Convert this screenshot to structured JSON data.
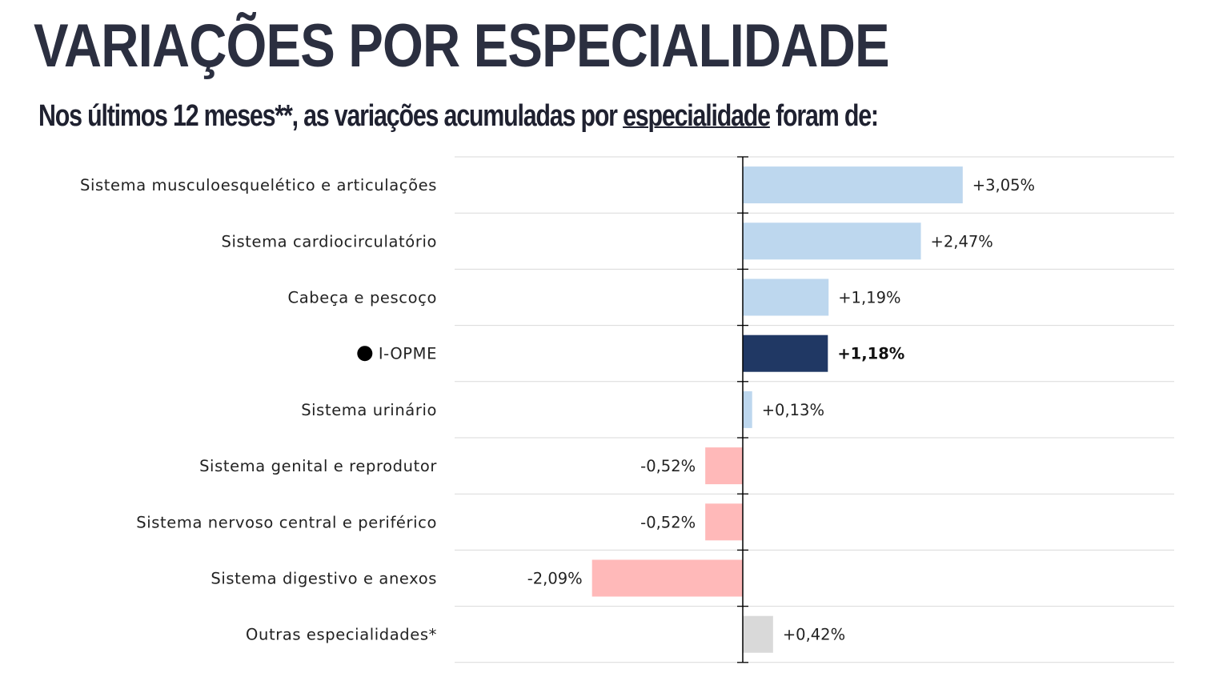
{
  "title": "VARIAÇÕES POR ESPECIALIDADE",
  "subtitle": {
    "before": "Nos últimos 12 meses**, as variações acumuladas por ",
    "underlined": "especialidade",
    "after": " foram de:"
  },
  "chart_data": {
    "type": "bar",
    "orientation": "horizontal",
    "categories": [
      "Sistema musculoesquelético e articulações",
      "Sistema cardiocirculatório",
      "Cabeça e pescoço",
      "I-OPME",
      "Sistema urinário",
      "Sistema genital e reprodutor",
      "Sistema nervoso central e periférico",
      "Sistema digestivo e anexos",
      "Outras especialidades*"
    ],
    "values": [
      3.05,
      2.47,
      1.19,
      1.18,
      0.13,
      -0.52,
      -0.52,
      -2.09,
      0.42
    ],
    "labels": [
      "+3,05%",
      "+2,47%",
      "+1,19%",
      "+1,18%",
      "+0,13%",
      "-0,52%",
      "-0,52%",
      "-2,09%",
      "+0,42%"
    ],
    "highlight_index": 3,
    "colors": {
      "positive": "#bdd7ee",
      "negative": "#ffb9b9",
      "highlight": "#203864",
      "other": "#d9d9d9",
      "grid": "#d9d9d9",
      "axis": "#000000"
    },
    "xlim": [
      -4.0,
      6.0
    ],
    "unit": "%"
  }
}
